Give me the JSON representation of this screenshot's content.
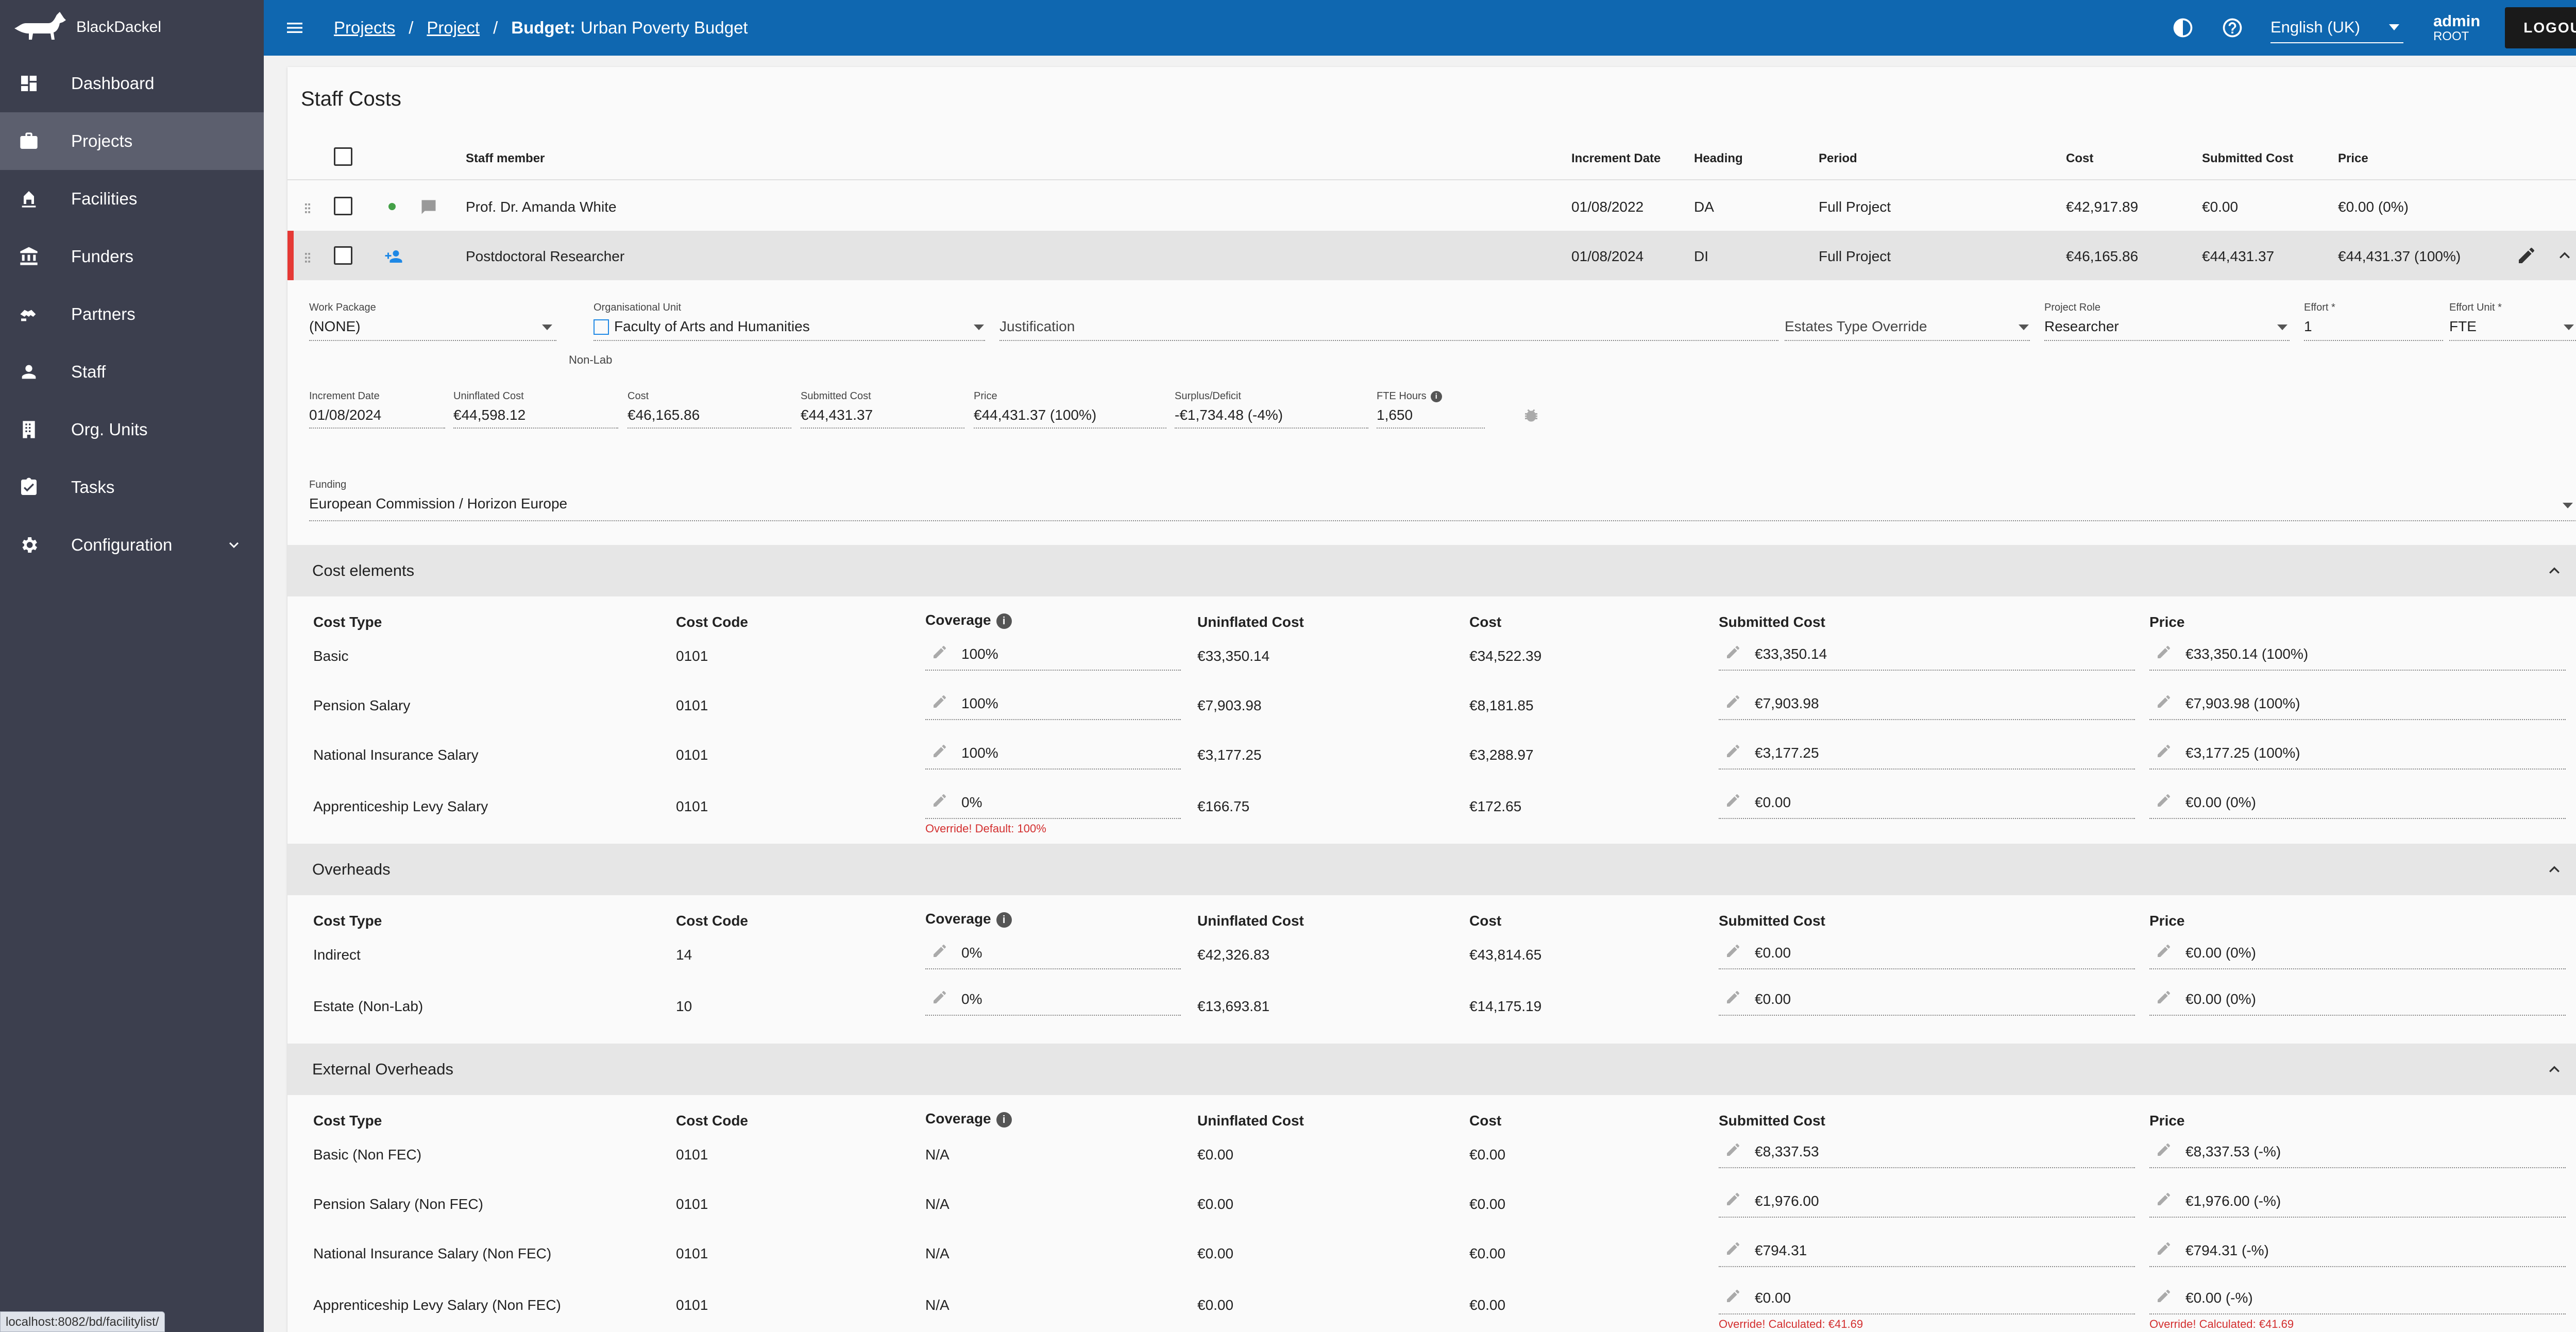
{
  "app": {
    "name": "BlackDackel"
  },
  "sidebar": {
    "items": [
      {
        "label": "Dashboard",
        "icon": "dashboard-icon",
        "active": false
      },
      {
        "label": "Projects",
        "icon": "briefcase-icon",
        "active": true
      },
      {
        "label": "Facilities",
        "icon": "facilities-icon",
        "active": false
      },
      {
        "label": "Funders",
        "icon": "bank-icon",
        "active": false
      },
      {
        "label": "Partners",
        "icon": "handshake-icon",
        "active": false
      },
      {
        "label": "Staff",
        "icon": "person-icon",
        "active": false
      },
      {
        "label": "Org. Units",
        "icon": "building-icon",
        "active": false
      },
      {
        "label": "Tasks",
        "icon": "clipboard-check-icon",
        "active": false
      },
      {
        "label": "Configuration",
        "icon": "gear-icon",
        "active": false
      }
    ]
  },
  "status_url": "localhost:8082/bd/facilitylist/",
  "topbar": {
    "breadcrumb": {
      "projects": "Projects",
      "project": "Project",
      "sep": "/",
      "budget_label": "Budget:",
      "budget_name": "Urban Poverty Budget"
    },
    "language": "English (UK)",
    "user": {
      "name": "admin",
      "role": "ROOT"
    },
    "logout": "LOGOUT"
  },
  "title": "Staff Costs",
  "staff_table": {
    "headers": {
      "staff_member": "Staff member",
      "increment_date": "Increment Date",
      "heading": "Heading",
      "period": "Period",
      "cost": "Cost",
      "submitted_cost": "Submitted Cost",
      "price": "Price"
    },
    "rows": [
      {
        "name": "Prof. Dr. Amanda White",
        "increment_date": "01/08/2022",
        "heading": "DA",
        "period": "Full Project",
        "cost": "€42,917.89",
        "submitted_cost": "€0.00",
        "price": "€0.00 (0%)"
      },
      {
        "name": "Postdoctoral Researcher",
        "increment_date": "01/08/2024",
        "heading": "DI",
        "period": "Full Project",
        "cost": "€46,165.86",
        "submitted_cost": "€44,431.37",
        "price": "€44,431.37 (100%)"
      }
    ]
  },
  "detail": {
    "work_package": {
      "label": "Work Package",
      "value": "(NONE)"
    },
    "org_unit": {
      "label": "Organisational Unit",
      "value": "Faculty of Arts and Humanities",
      "sub": "Non-Lab"
    },
    "justification": {
      "placeholder": "Justification"
    },
    "estates_override": {
      "placeholder": "Estates Type Override"
    },
    "project_role": {
      "label": "Project Role",
      "value": "Researcher"
    },
    "effort": {
      "label": "Effort *",
      "value": "1"
    },
    "effort_unit": {
      "label": "Effort Unit *",
      "value": "FTE"
    },
    "increment_date": {
      "label": "Increment Date",
      "value": "01/08/2024"
    },
    "uninflated_cost": {
      "label": "Uninflated Cost",
      "value": "€44,598.12"
    },
    "cost": {
      "label": "Cost",
      "value": "€46,165.86"
    },
    "submitted_cost": {
      "label": "Submitted Cost",
      "value": "€44,431.37"
    },
    "price": {
      "label": "Price",
      "value": "€44,431.37 (100%)"
    },
    "surplus": {
      "label": "Surplus/Deficit",
      "value": "-€1,734.48 (-4%)"
    },
    "fte_hours": {
      "label": "FTE Hours",
      "value": "1,650"
    },
    "funding": {
      "label": "Funding",
      "value": "European Commission / Horizon Europe"
    }
  },
  "col_headers": {
    "cost_type": "Cost Type",
    "cost_code": "Cost Code",
    "coverage": "Coverage",
    "uninflated_cost": "Uninflated Cost",
    "cost": "Cost",
    "submitted_cost": "Submitted Cost",
    "price": "Price"
  },
  "cost_elements": {
    "title": "Cost elements",
    "rows": [
      {
        "type": "Basic",
        "code": "0101",
        "coverage": "100%",
        "uninflated": "€33,350.14",
        "cost": "€34,522.39",
        "submitted": "€33,350.14",
        "price": "€33,350.14 (100%)",
        "warn": ""
      },
      {
        "type": "Pension Salary",
        "code": "0101",
        "coverage": "100%",
        "uninflated": "€7,903.98",
        "cost": "€8,181.85",
        "submitted": "€7,903.98",
        "price": "€7,903.98 (100%)",
        "warn": ""
      },
      {
        "type": "National Insurance Salary",
        "code": "0101",
        "coverage": "100%",
        "uninflated": "€3,177.25",
        "cost": "€3,288.97",
        "submitted": "€3,177.25",
        "price": "€3,177.25 (100%)",
        "warn": ""
      },
      {
        "type": "Apprenticeship Levy Salary",
        "code": "0101",
        "coverage": "0%",
        "uninflated": "€166.75",
        "cost": "€172.65",
        "submitted": "€0.00",
        "price": "€0.00 (0%)",
        "warn": "Override! Default: 100%"
      }
    ]
  },
  "overheads": {
    "title": "Overheads",
    "rows": [
      {
        "type": "Indirect",
        "code": "14",
        "coverage": "0%",
        "uninflated": "€42,326.83",
        "cost": "€43,814.65",
        "submitted": "€0.00",
        "price": "€0.00 (0%)"
      },
      {
        "type": "Estate (Non-Lab)",
        "code": "10",
        "coverage": "0%",
        "uninflated": "€13,693.81",
        "cost": "€14,175.19",
        "submitted": "€0.00",
        "price": "€0.00 (0%)"
      }
    ]
  },
  "external_overheads": {
    "title": "External Overheads",
    "rows": [
      {
        "type": "Basic (Non FEC)",
        "code": "0101",
        "coverage": "N/A",
        "uninflated": "€0.00",
        "cost": "€0.00",
        "submitted": "€8,337.53",
        "price": "€8,337.53 (-%)",
        "sub_warn": "",
        "price_warn": ""
      },
      {
        "type": "Pension Salary (Non FEC)",
        "code": "0101",
        "coverage": "N/A",
        "uninflated": "€0.00",
        "cost": "€0.00",
        "submitted": "€1,976.00",
        "price": "€1,976.00 (-%)",
        "sub_warn": "",
        "price_warn": ""
      },
      {
        "type": "National Insurance Salary (Non FEC)",
        "code": "0101",
        "coverage": "N/A",
        "uninflated": "€0.00",
        "cost": "€0.00",
        "submitted": "€794.31",
        "price": "€794.31 (-%)",
        "sub_warn": "",
        "price_warn": ""
      },
      {
        "type": "Apprenticeship Levy Salary (Non FEC)",
        "code": "0101",
        "coverage": "N/A",
        "uninflated": "€0.00",
        "cost": "€0.00",
        "submitted": "€0.00",
        "price": "€0.00 (-%)",
        "sub_warn": "Override! Calculated: €41.69",
        "price_warn": "Override! Calculated: €41.69"
      }
    ]
  },
  "colors": {
    "topbar": "#0f67b0",
    "sidebar": "#3c3f4e",
    "sidebar_active": "#5c5f6e",
    "accent_red": "#e53935",
    "warn_red": "#d32f2f"
  }
}
